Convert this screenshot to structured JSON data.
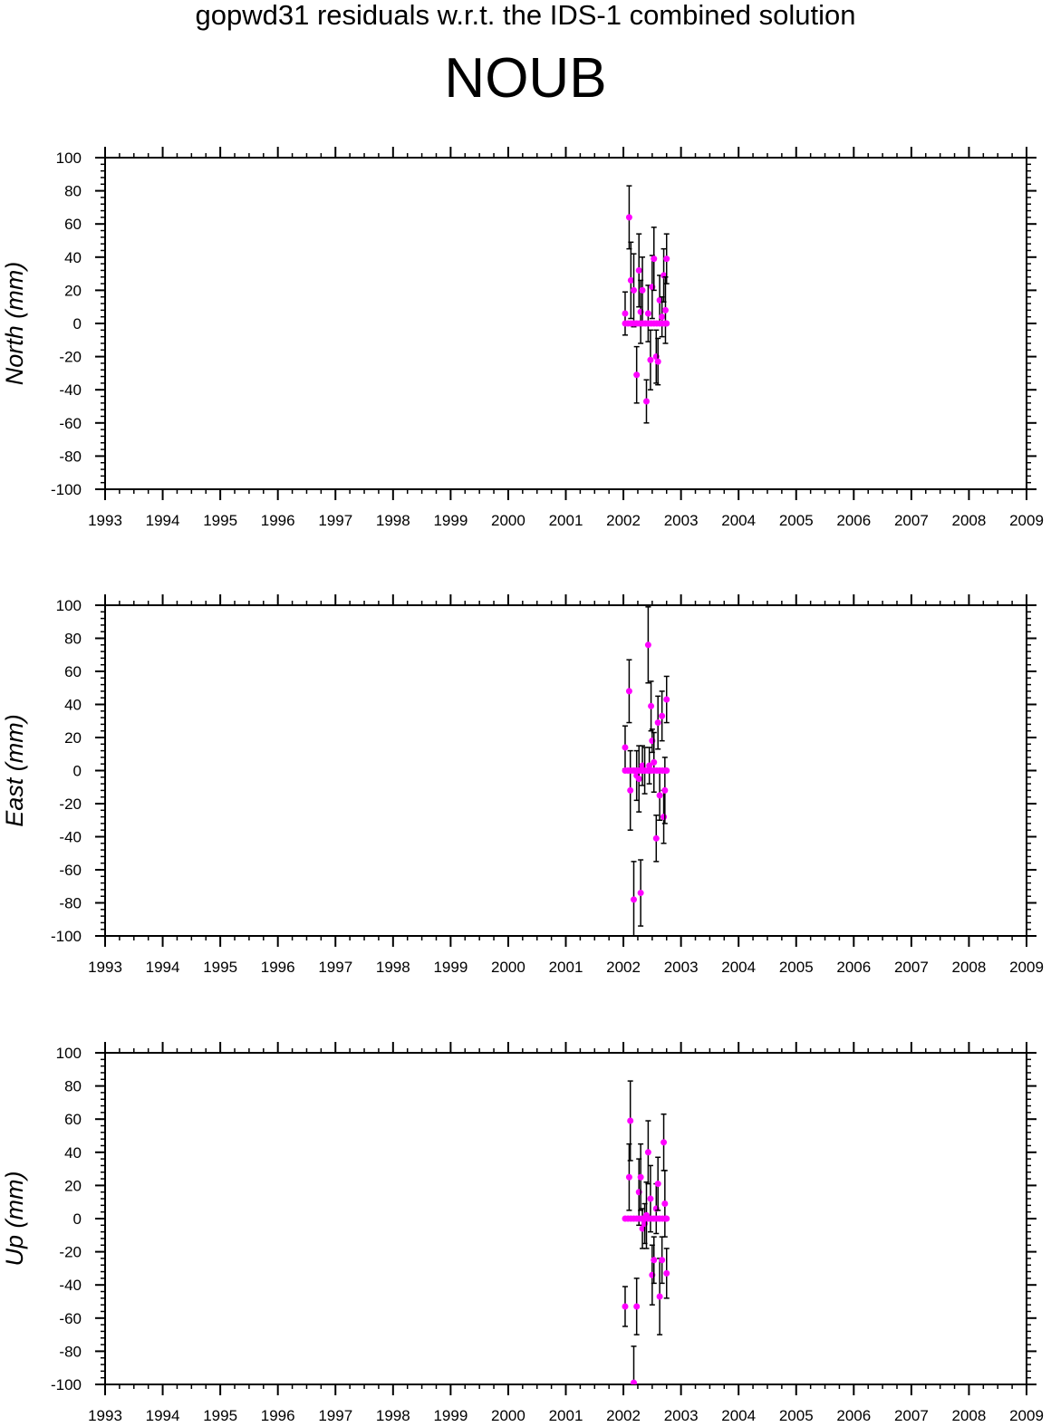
{
  "header": {
    "title": "gopwd31 residuals w.r.t. the IDS-1 combined solution",
    "station": "NOUB"
  },
  "colors": {
    "point": "#ff00ff",
    "errorbar": "#000000",
    "axes": "#000000"
  },
  "chart_data": [
    {
      "type": "scatter",
      "ylabel": "North (mm)",
      "xlim": [
        1993,
        2009
      ],
      "ylim": [
        -100,
        100
      ],
      "xticks": [
        1993,
        1994,
        1995,
        1996,
        1997,
        1998,
        1999,
        2000,
        2001,
        2002,
        2003,
        2004,
        2005,
        2006,
        2007,
        2008,
        2009
      ],
      "yticks": [
        -100,
        -80,
        -60,
        -40,
        -20,
        0,
        20,
        40,
        60,
        80,
        100
      ],
      "grid": false,
      "series": [
        {
          "x": [
            2002.03,
            2002.1,
            2002.13,
            2002.18,
            2002.23,
            2002.27,
            2002.3,
            2002.33,
            2002.4,
            2002.43,
            2002.47,
            2002.5,
            2002.53,
            2002.57,
            2002.6,
            2002.63,
            2002.67,
            2002.7,
            2002.73,
            2002.75
          ],
          "y": [
            6,
            64,
            26,
            20,
            -31,
            32,
            7,
            20,
            -47,
            6,
            -22,
            22,
            39,
            -20,
            -23,
            14,
            4,
            29,
            8,
            39
          ],
          "err": [
            13,
            19,
            23,
            22,
            17,
            22,
            19,
            20,
            13,
            17,
            18,
            19,
            19,
            16,
            14,
            15,
            12,
            16,
            20,
            15
          ]
        },
        {
          "x": [
            2002.03,
            2002.08,
            2002.13,
            2002.18,
            2002.23,
            2002.28,
            2002.33,
            2002.38,
            2002.43,
            2002.48,
            2002.53,
            2002.58,
            2002.63,
            2002.68,
            2002.73,
            2002.75
          ],
          "y": [
            0,
            0,
            0,
            0,
            0,
            0,
            0,
            0,
            0,
            0,
            0,
            0,
            0,
            0,
            0,
            0
          ],
          "err": [
            0,
            0,
            0,
            0,
            0,
            0,
            0,
            0,
            0,
            0,
            0,
            0,
            0,
            0,
            0,
            0
          ]
        }
      ]
    },
    {
      "type": "scatter",
      "ylabel": "East (mm)",
      "xlim": [
        1993,
        2009
      ],
      "ylim": [
        -100,
        100
      ],
      "xticks": [
        1993,
        1994,
        1995,
        1996,
        1997,
        1998,
        1999,
        2000,
        2001,
        2002,
        2003,
        2004,
        2005,
        2006,
        2007,
        2008,
        2009
      ],
      "yticks": [
        -100,
        -80,
        -60,
        -40,
        -20,
        0,
        20,
        40,
        60,
        80,
        100
      ],
      "grid": false,
      "series": [
        {
          "x": [
            2002.03,
            2002.1,
            2002.12,
            2002.18,
            2002.23,
            2002.27,
            2002.3,
            2002.33,
            2002.37,
            2002.43,
            2002.45,
            2002.48,
            2002.5,
            2002.53,
            2002.57,
            2002.6,
            2002.63,
            2002.67,
            2002.7,
            2002.72,
            2002.75
          ],
          "y": [
            14,
            48,
            -12,
            -78,
            -3,
            -5,
            -74,
            3,
            0,
            76,
            3,
            39,
            18,
            5,
            -41,
            29,
            -15,
            33,
            -28,
            -12,
            43
          ],
          "err": [
            13,
            19,
            24,
            23,
            15,
            20,
            20,
            12,
            14,
            23,
            11,
            15,
            7,
            18,
            14,
            16,
            15,
            15,
            16,
            20,
            14
          ]
        },
        {
          "x": [
            2002.03,
            2002.08,
            2002.13,
            2002.18,
            2002.23,
            2002.28,
            2002.33,
            2002.38,
            2002.43,
            2002.48,
            2002.53,
            2002.58,
            2002.63,
            2002.68,
            2002.73,
            2002.75
          ],
          "y": [
            0,
            0,
            0,
            0,
            0,
            0,
            0,
            0,
            0,
            0,
            0,
            0,
            0,
            0,
            0,
            0
          ],
          "err": [
            0,
            0,
            0,
            0,
            0,
            0,
            0,
            0,
            0,
            0,
            0,
            0,
            0,
            0,
            0,
            0
          ]
        }
      ]
    },
    {
      "type": "scatter",
      "ylabel": "Up (mm)",
      "xlim": [
        1993,
        2009
      ],
      "ylim": [
        -100,
        100
      ],
      "xticks": [
        1993,
        1994,
        1995,
        1996,
        1997,
        1998,
        1999,
        2000,
        2001,
        2002,
        2003,
        2004,
        2005,
        2006,
        2007,
        2008,
        2009
      ],
      "yticks": [
        -100,
        -80,
        -60,
        -40,
        -20,
        0,
        20,
        40,
        60,
        80,
        100
      ],
      "grid": false,
      "series": [
        {
          "x": [
            2002.03,
            2002.1,
            2002.12,
            2002.18,
            2002.23,
            2002.27,
            2002.3,
            2002.33,
            2002.37,
            2002.4,
            2002.43,
            2002.47,
            2002.5,
            2002.53,
            2002.57,
            2002.6,
            2002.63,
            2002.67,
            2002.7,
            2002.72,
            2002.75
          ],
          "y": [
            -53,
            25,
            59,
            -99,
            -53,
            16,
            25,
            -6,
            -3,
            2,
            40,
            12,
            -34,
            -25,
            6,
            21,
            -47,
            -25,
            46,
            9,
            -33
          ],
          "err": [
            12,
            20,
            24,
            22,
            17,
            20,
            20,
            12,
            12,
            20,
            19,
            20,
            18,
            14,
            15,
            16,
            23,
            14,
            17,
            20,
            15
          ]
        },
        {
          "x": [
            2002.03,
            2002.08,
            2002.13,
            2002.18,
            2002.23,
            2002.28,
            2002.33,
            2002.38,
            2002.43,
            2002.48,
            2002.53,
            2002.58,
            2002.63,
            2002.68,
            2002.73,
            2002.75
          ],
          "y": [
            0,
            0,
            0,
            0,
            0,
            0,
            0,
            0,
            0,
            0,
            0,
            0,
            0,
            0,
            0,
            0
          ],
          "err": [
            0,
            0,
            0,
            0,
            0,
            0,
            0,
            0,
            0,
            0,
            0,
            0,
            0,
            0,
            0,
            0
          ]
        }
      ]
    }
  ]
}
